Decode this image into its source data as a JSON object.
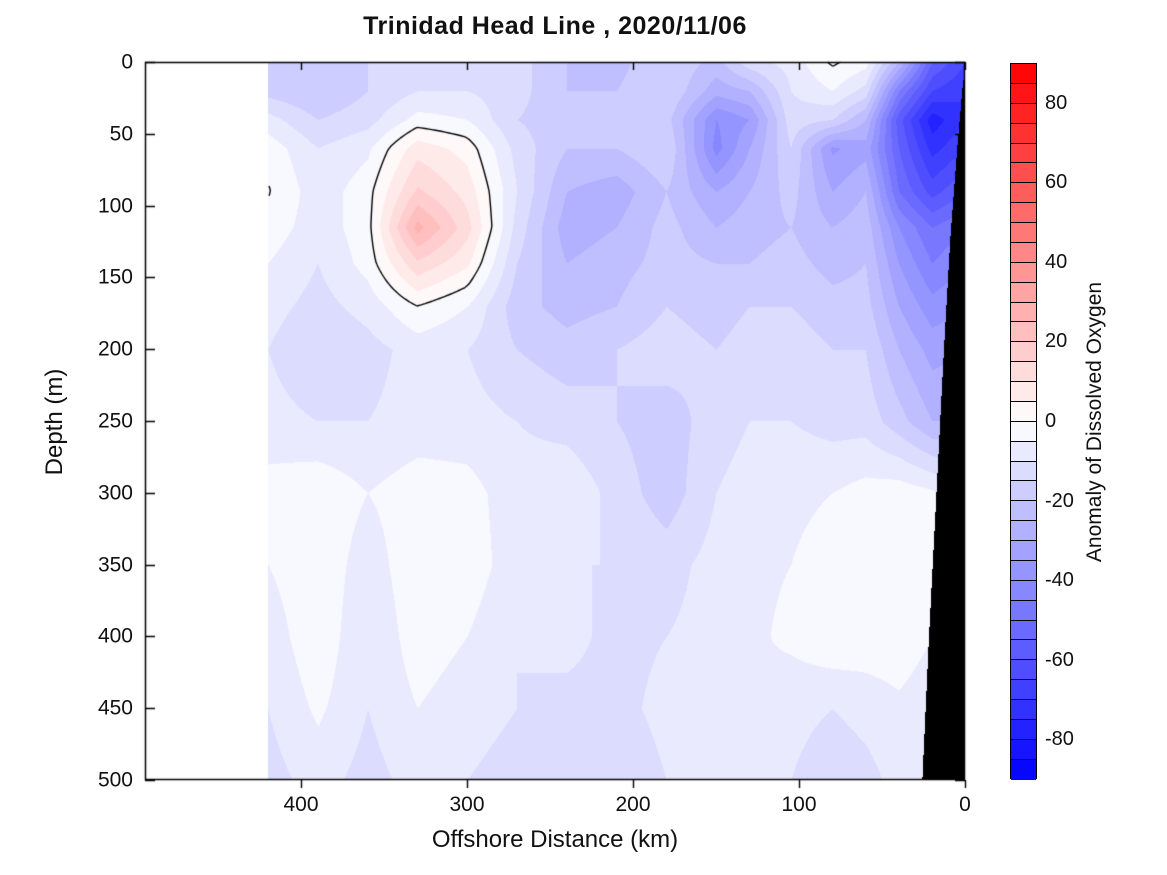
{
  "chart": {
    "title": "Trinidad Head Line , 2020/11/06",
    "xlabel": "Offshore Distance (km)",
    "ylabel": "Depth (m)",
    "x_ticks": [
      400,
      300,
      200,
      100,
      0
    ],
    "y_ticks": [
      0,
      50,
      100,
      150,
      200,
      250,
      300,
      350,
      400,
      450,
      500
    ],
    "colorbar": {
      "label": "Anomaly of Dissolved Oxygen",
      "ticks": [
        80,
        60,
        40,
        20,
        0,
        -20,
        -40,
        -60,
        -80
      ],
      "range_min": -90,
      "range_max": 90,
      "level_step": 5,
      "color_positive": "#ff0000",
      "color_zero": "#ffffff",
      "color_negative": "#0000ff"
    }
  },
  "chart_data": {
    "type": "heatmap",
    "title": "Trinidad Head Line , 2020/11/06",
    "xlabel": "Offshore Distance (km)",
    "ylabel": "Depth (m)",
    "zlabel": "Anomaly of Dissolved Oxygen",
    "x_axis_reversed": true,
    "y_axis_reversed": true,
    "xlim_km": [
      494,
      0
    ],
    "ylim_m": [
      0,
      500
    ],
    "data_extent_km": [
      420,
      0
    ],
    "contour_level_step": 5,
    "zero_contour_drawn": true,
    "distances_km": [
      420,
      390,
      360,
      330,
      300,
      270,
      240,
      210,
      180,
      150,
      130,
      105,
      80,
      60,
      40,
      20,
      0
    ],
    "depths_m": [
      0,
      20,
      40,
      60,
      90,
      115,
      140,
      170,
      200,
      250,
      300,
      350,
      400,
      450,
      500
    ],
    "anomaly_values": [
      [
        -15,
        -18,
        -15,
        -12,
        -12,
        -13,
        -20,
        -22,
        -15,
        -22,
        -12,
        -8,
        1,
        -3,
        -25,
        -55,
        -65
      ],
      [
        -17,
        -20,
        -15,
        -10,
        -10,
        -13,
        -20,
        -20,
        -15,
        -28,
        -25,
        -10,
        -5,
        -12,
        -45,
        -65,
        -70
      ],
      [
        -8,
        -15,
        -12,
        -3,
        -5,
        -15,
        -18,
        -18,
        -18,
        -40,
        -35,
        -12,
        -15,
        -25,
        -58,
        -78,
        -70
      ],
      [
        -2,
        -10,
        -6,
        8,
        3,
        -12,
        -20,
        -20,
        -15,
        -42,
        -30,
        -15,
        -36,
        -32,
        -55,
        -72,
        -65
      ],
      [
        0.5,
        -8,
        -2,
        16,
        8,
        -10,
        -25,
        -28,
        -20,
        -30,
        -25,
        -18,
        -30,
        -25,
        -50,
        -62,
        -55
      ],
      [
        -2,
        -8,
        -2,
        27,
        12,
        -12,
        -28,
        -25,
        -18,
        -25,
        -22,
        -20,
        -25,
        -22,
        -40,
        -50,
        -45
      ],
      [
        -5,
        -10,
        -3,
        14,
        6,
        -15,
        -25,
        -22,
        -18,
        -20,
        -20,
        -18,
        -22,
        -20,
        -35,
        -45,
        -40
      ],
      [
        -8,
        -12,
        -8,
        0,
        -5,
        -18,
        -22,
        -20,
        -15,
        -18,
        -15,
        -15,
        -18,
        -18,
        -30,
        -38,
        -35
      ],
      [
        -10,
        -15,
        -12,
        -8,
        -10,
        -15,
        -18,
        -15,
        -12,
        -15,
        -12,
        -12,
        -15,
        -15,
        -25,
        -32,
        -30
      ],
      [
        -8,
        -10,
        -10,
        -8,
        -8,
        -10,
        -12,
        -15,
        -18,
        -12,
        -10,
        -10,
        -12,
        -12,
        -18,
        -25,
        -25
      ],
      [
        -3,
        -1,
        -5,
        -2,
        -3,
        -8,
        -6,
        -12,
        -18,
        -10,
        -8,
        -6,
        -5,
        -3,
        -2,
        -4,
        -10
      ],
      [
        -5,
        -1,
        -8,
        -1,
        -2,
        -8,
        -10,
        -10,
        -12,
        -8,
        -6,
        -5,
        -3,
        -2,
        -1,
        -3,
        -10
      ],
      [
        -8,
        -1,
        -10,
        -2,
        -5,
        -10,
        -8,
        -12,
        -10,
        -8,
        -6,
        -4,
        -1,
        -2,
        -2,
        -5,
        -8
      ],
      [
        -10,
        -4,
        -10,
        -5,
        -8,
        -10,
        -12,
        -12,
        -8,
        -6,
        -5,
        -8,
        -10,
        -8,
        -6,
        -8,
        -10
      ],
      [
        -12,
        -8,
        -12,
        -8,
        -10,
        -12,
        -15,
        -15,
        -10,
        -8,
        -8,
        -10,
        -14,
        -12,
        -8,
        -10,
        -12
      ]
    ],
    "land_mask_depth_to_distance_km": [
      [
        0,
        0
      ],
      [
        20,
        2
      ],
      [
        60,
        5
      ],
      [
        120,
        9
      ],
      [
        200,
        13
      ],
      [
        300,
        17.5
      ],
      [
        400,
        22
      ],
      [
        500,
        26
      ]
    ],
    "notable_features": [
      "positive anomaly core about +25 near 320-330 km offshore at 100-130 m depth, enclosed by black zero contour",
      "strong negative anomaly near -80 close to the coast (20-30 km) at 30-60 m depth",
      "negative core near -42 around 140 km offshore at 40-60 m depth",
      "near-zero white patch at the surface around 60-90 km offshore",
      "no data farther offshore than about 420 km (blank white region)",
      "black wedge at lower right is the seafloor/land mask"
    ]
  }
}
